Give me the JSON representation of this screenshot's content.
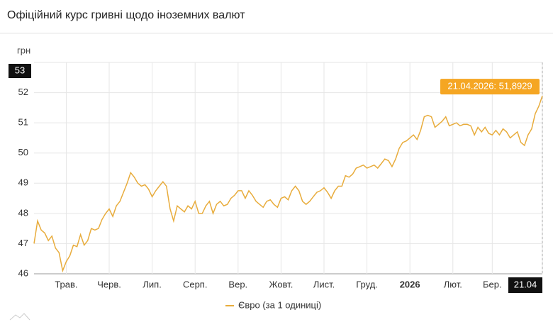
{
  "title": "Офіційний курс гривні щодо іноземних валют",
  "chart_data": {
    "type": "line",
    "ylabel": "грн",
    "x": [
      0,
      1,
      2,
      3,
      4,
      5,
      6,
      7,
      8,
      9,
      10,
      11,
      12,
      13,
      14,
      15,
      16,
      17,
      18,
      19,
      20,
      21,
      22,
      23,
      24,
      25,
      26,
      27,
      28,
      29,
      30,
      31,
      32,
      33,
      34,
      35,
      36,
      37,
      38,
      39,
      40,
      41,
      42,
      43,
      44,
      45,
      46,
      47,
      48,
      49,
      50,
      51,
      52,
      53,
      54,
      55,
      56,
      57,
      58,
      59,
      60,
      61,
      62,
      63,
      64,
      65,
      66,
      67,
      68,
      69,
      70,
      71,
      72,
      73,
      74,
      75,
      76,
      77,
      78,
      79,
      80,
      81,
      82,
      83,
      84,
      85,
      86,
      87,
      88,
      89,
      90,
      91,
      92,
      93,
      94,
      95,
      96,
      97,
      98,
      99,
      100,
      101,
      102,
      103,
      104,
      105,
      106,
      107,
      108,
      109,
      110,
      111,
      112,
      113,
      114,
      115,
      116,
      117,
      118,
      119,
      120,
      121,
      122,
      123,
      124,
      125,
      126,
      127,
      128,
      129,
      130,
      131,
      132,
      133,
      134,
      135,
      136,
      137,
      138,
      139,
      140,
      141,
      142
    ],
    "series": [
      {
        "name": "Євро (за 1 одиниці)",
        "color": "#e8ac3c",
        "values": [
          47.0,
          47.75,
          47.45,
          47.35,
          47.1,
          47.25,
          46.85,
          46.7,
          46.1,
          46.4,
          46.6,
          46.95,
          46.9,
          47.3,
          46.95,
          47.1,
          47.5,
          47.45,
          47.5,
          47.8,
          48.0,
          48.15,
          47.9,
          48.25,
          48.4,
          48.7,
          49.0,
          49.35,
          49.2,
          49.0,
          48.9,
          48.95,
          48.8,
          48.55,
          48.75,
          48.9,
          49.05,
          48.9,
          48.15,
          47.75,
          48.25,
          48.15,
          48.05,
          48.25,
          48.15,
          48.4,
          48.0,
          48.0,
          48.25,
          48.4,
          48.0,
          48.3,
          48.4,
          48.25,
          48.3,
          48.5,
          48.6,
          48.75,
          48.75,
          48.5,
          48.75,
          48.6,
          48.4,
          48.3,
          48.2,
          48.4,
          48.45,
          48.3,
          48.2,
          48.5,
          48.55,
          48.45,
          48.75,
          48.9,
          48.75,
          48.4,
          48.3,
          48.4,
          48.55,
          48.7,
          48.75,
          48.85,
          48.7,
          48.5,
          48.75,
          48.9,
          48.9,
          49.25,
          49.2,
          49.3,
          49.5,
          49.55,
          49.6,
          49.5,
          49.55,
          49.6,
          49.5,
          49.65,
          49.8,
          49.75,
          49.55,
          49.8,
          50.15,
          50.35,
          50.4,
          50.5,
          50.6,
          50.45,
          50.75,
          51.2,
          51.25,
          51.2,
          50.85,
          50.95,
          51.05,
          51.2,
          50.9,
          50.95,
          51.0,
          50.9,
          50.95,
          50.95,
          50.9,
          50.6,
          50.85,
          50.7,
          50.85,
          50.65,
          50.6,
          50.75,
          50.6,
          50.8,
          50.7,
          50.5,
          50.6,
          50.7,
          50.35,
          50.25,
          50.6,
          50.8,
          51.3,
          51.55,
          51.8929
        ]
      }
    ],
    "tooltip": "21.04.2026: 51,8929",
    "xlim": [
      0,
      142
    ],
    "xticks": [
      {
        "value": 9,
        "label": "Трав."
      },
      {
        "value": 21,
        "label": "Черв."
      },
      {
        "value": 33,
        "label": "Лип."
      },
      {
        "value": 45,
        "label": "Серп."
      },
      {
        "value": 57,
        "label": "Вер."
      },
      {
        "value": 69,
        "label": "Жовт."
      },
      {
        "value": 81,
        "label": "Лист."
      },
      {
        "value": 93,
        "label": "Груд."
      },
      {
        "value": 105,
        "label": "2026",
        "bold": true
      },
      {
        "value": 117,
        "label": "Лют."
      },
      {
        "value": 128,
        "label": "Бер."
      },
      {
        "value": 142,
        "label": "21.04"
      }
    ],
    "ylim": [
      46,
      53
    ],
    "yticks": [
      46,
      47,
      48,
      49,
      50,
      51,
      52,
      53
    ],
    "grid": true,
    "crosshair": true,
    "legend": "bottom"
  }
}
